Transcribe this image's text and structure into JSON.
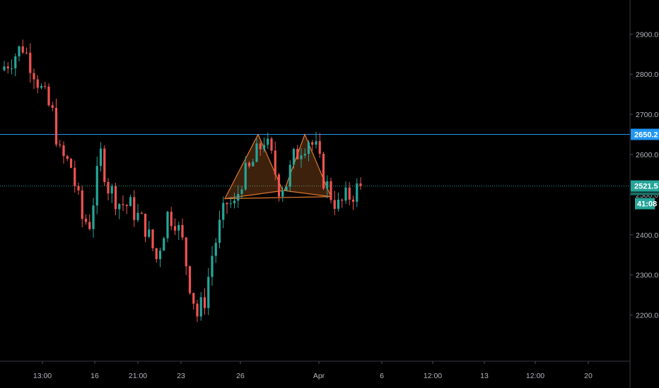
{
  "chart_data": {
    "type": "candlestick",
    "y_ticks": [
      2200,
      2300,
      2400,
      2500,
      2600,
      2700,
      2800,
      2900
    ],
    "y_tick_labels": [
      "2200.0",
      "2300.0",
      "2400.0",
      "2500.0",
      "2600.0",
      "2700.0",
      "2800.0",
      "2900.0"
    ],
    "x_tick_labels": [
      "13:00",
      "16",
      "21:00",
      "23",
      "26",
      "Apr",
      "6",
      "12:00",
      "13",
      "12:00",
      "20"
    ],
    "ylim": [
      2085,
      2985
    ],
    "grid": false,
    "colors": {
      "background": "#000000",
      "up": "#26a69a",
      "down": "#ef5350",
      "resistance_line": "#2196f3",
      "last_price_line": "#26a69a",
      "pattern": "#e0782c",
      "axis_text": "#b2b5be"
    },
    "horizontal_lines": [
      {
        "value": 2650.2,
        "label": "2650.2",
        "style": "solid",
        "color": "#2196f3"
      },
      {
        "value": 2521.5,
        "label": "2521.5",
        "style": "dotted",
        "color": "#26a69a"
      }
    ],
    "countdown_label": "41:08",
    "price_path_closes": [
      [
        0,
        2820
      ],
      [
        5,
        2870
      ],
      [
        8,
        2810
      ],
      [
        10,
        2760
      ],
      [
        13,
        2700
      ],
      [
        15,
        2600
      ],
      [
        18,
        2570
      ],
      [
        21,
        2440
      ],
      [
        23,
        2430
      ],
      [
        26,
        2600
      ],
      [
        28,
        2520
      ],
      [
        31,
        2480
      ],
      [
        34,
        2470
      ],
      [
        38,
        2420
      ],
      [
        41,
        2340
      ],
      [
        44,
        2450
      ],
      [
        46,
        2440
      ],
      [
        48,
        2380
      ],
      [
        50,
        2280
      ],
      [
        52,
        2200
      ],
      [
        54,
        2240
      ],
      [
        56,
        2350
      ],
      [
        58,
        2420
      ],
      [
        60,
        2480
      ],
      [
        62,
        2470
      ],
      [
        64,
        2540
      ],
      [
        66,
        2560
      ],
      [
        68,
        2600
      ],
      [
        70,
        2640
      ],
      [
        72,
        2590
      ],
      [
        74,
        2520
      ],
      [
        76,
        2530
      ],
      [
        78,
        2590
      ],
      [
        80,
        2620
      ],
      [
        82,
        2640
      ],
      [
        84,
        2610
      ],
      [
        86,
        2540
      ],
      [
        88,
        2500
      ],
      [
        90,
        2470
      ],
      [
        92,
        2490
      ],
      [
        94,
        2505
      ],
      [
        96,
        2521.5
      ]
    ],
    "patterns": [
      {
        "type": "triangle",
        "points": [
          [
            2490,
            "left"
          ],
          [
            2650,
            "top"
          ],
          [
            2510,
            "right"
          ]
        ]
      },
      {
        "type": "triangle",
        "points": [
          [
            2510,
            "left"
          ],
          [
            2650,
            "top"
          ],
          [
            2495,
            "right"
          ]
        ]
      }
    ]
  }
}
